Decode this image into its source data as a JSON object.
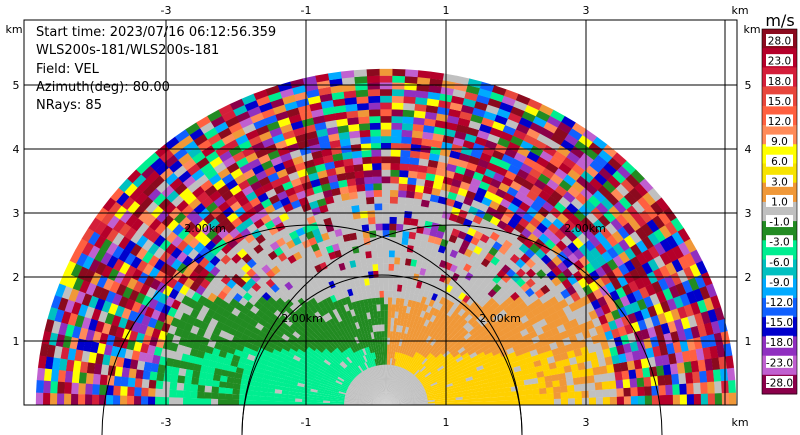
{
  "info": {
    "start_time": "Start time: 2023/07/16 06:12:56.359",
    "instrument": "WLS200s-181/WLS200s-181",
    "field": "Field: VEL",
    "azimuth": "Azimuth(deg): 80.00",
    "nrays": "NRays: 85"
  },
  "chart_data": {
    "type": "heatmap",
    "title": "",
    "xlabel": "km",
    "ylabel": "km",
    "x_ticks": [
      "-3",
      "-1",
      "1",
      "3"
    ],
    "y_ticks": [
      "1",
      "2",
      "3",
      "4",
      "5"
    ],
    "xlim": [
      -5.8,
      4.2
    ],
    "ylim": [
      0,
      5.85
    ],
    "grid": true,
    "range_ring_labels": [
      "2.00km",
      "2.00km",
      "2.00km",
      "2.00km"
    ],
    "colorbar": {
      "unit": "m/s",
      "labels": [
        "28.0",
        "23.0",
        "18.0",
        "15.0",
        "12.0",
        "9.0",
        "6.0",
        "3.0",
        "1.0",
        "-1.0",
        "-3.0",
        "-6.0",
        "-9.0",
        "-12.0",
        "-15.0",
        "-18.0",
        "-23.0",
        "-28.0"
      ],
      "colors": [
        "#8b0a1e",
        "#b5002a",
        "#d41e3a",
        "#e8463c",
        "#ff6040",
        "#ff8a58",
        "#ffff00",
        "#f7e300",
        "#f09838",
        "#c0c0c0",
        "#228b22",
        "#00ee90",
        "#00c0c0",
        "#00aaff",
        "#1060ff",
        "#0000cc",
        "#9030c0",
        "#c060d0",
        "#8b004a"
      ],
      "orientation": "vertical",
      "placement": "right"
    }
  }
}
